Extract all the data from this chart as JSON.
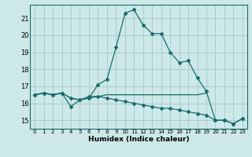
{
  "xlabel": "Humidex (Indice chaleur)",
  "bg_color": "#cce8e8",
  "grid_color": "#aacccc",
  "line_color": "#1a6b6b",
  "xlim": [
    -0.5,
    23.5
  ],
  "ylim": [
    14.5,
    21.8
  ],
  "yticks": [
    15,
    16,
    17,
    18,
    19,
    20,
    21
  ],
  "xticks": [
    0,
    1,
    2,
    3,
    4,
    5,
    6,
    7,
    8,
    9,
    10,
    11,
    12,
    13,
    14,
    15,
    16,
    17,
    18,
    19,
    20,
    21,
    22,
    23
  ],
  "curve1_x": [
    0,
    1,
    2,
    3,
    4,
    5,
    6,
    7,
    8,
    9,
    10,
    11,
    12,
    13,
    14,
    15,
    16,
    17,
    18,
    19,
    20,
    21,
    22,
    23
  ],
  "curve1_y": [
    16.5,
    16.6,
    16.5,
    16.6,
    16.3,
    16.2,
    16.3,
    17.1,
    17.4,
    19.3,
    21.3,
    21.5,
    20.6,
    20.1,
    20.1,
    19.0,
    18.4,
    18.5,
    17.5,
    16.7,
    15.0,
    15.0,
    14.8,
    15.1
  ],
  "curve2_x": [
    0,
    1,
    2,
    3,
    4,
    5,
    6,
    7,
    8,
    9,
    10,
    11,
    12,
    13,
    14,
    15,
    16,
    17,
    18,
    19,
    20,
    21,
    22,
    23
  ],
  "curve2_y": [
    16.5,
    16.6,
    16.5,
    16.6,
    15.8,
    16.2,
    16.4,
    16.4,
    16.3,
    16.2,
    16.1,
    16.0,
    15.9,
    15.8,
    15.7,
    15.7,
    15.6,
    15.5,
    15.4,
    15.3,
    15.0,
    15.0,
    14.8,
    15.1
  ],
  "curve3_x": [
    0,
    1,
    2,
    3,
    4,
    5,
    6,
    7,
    8,
    9,
    10,
    11,
    12,
    13,
    14,
    15,
    16,
    17,
    18,
    19
  ],
  "curve3_y": [
    16.5,
    16.6,
    16.5,
    16.6,
    16.3,
    16.2,
    16.3,
    16.4,
    16.5,
    16.5,
    16.5,
    16.5,
    16.5,
    16.5,
    16.5,
    16.5,
    16.5,
    16.5,
    16.5,
    16.6
  ]
}
